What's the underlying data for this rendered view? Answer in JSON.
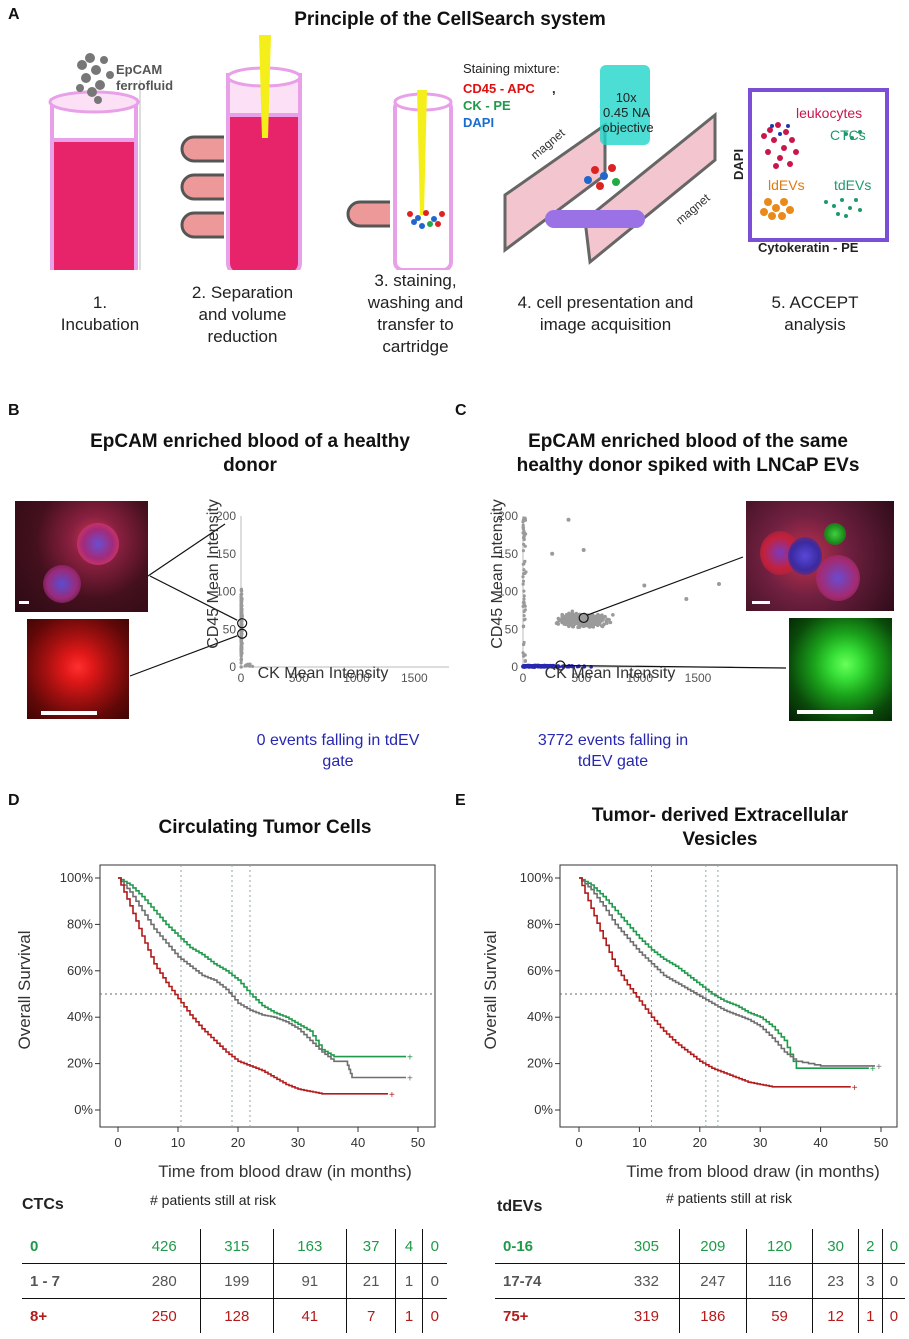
{
  "panelA": {
    "letter": "A",
    "title": "Principle of the CellSearch system",
    "ferrofluid": "EpCAM\nferrofluid",
    "staining_label": "Staining mixture:",
    "stain_cd45": "CD45 - APC",
    "stain_ck": "CK - PE",
    "stain_dapi": "DAPI",
    "stain_comma": ",",
    "objective": "10x\n0.45 NA\nobjective",
    "magnet": "magnet",
    "accept_leukocytes": "leukocytes",
    "accept_ctcs": "CTCs",
    "accept_tdevs": "tdEVs",
    "accept_ldevs": "ldEVs",
    "accept_dapi": "DAPI",
    "accept_ck": "Cytokeratin - PE",
    "steps": [
      "1.\nIncubation",
      "2. Separation\nand volume\nreduction",
      "3. staining,\nwashing and\ntransfer to\ncartridge",
      "4. cell presentation and\nimage acquisition",
      "5. ACCEPT\nanalysis"
    ]
  },
  "panelB": {
    "letter": "B",
    "title": "EpCAM enriched blood of a healthy\ndonor",
    "gate_text": "0 events falling in tdEV\ngate"
  },
  "panelC": {
    "letter": "C",
    "title": "EpCAM enriched blood of the same\nhealthy donor spiked with LNCaP EVs",
    "gate_text": "3772 events falling in\ntdEV gate"
  },
  "panelD": {
    "letter": "D",
    "title": "Circulating Tumor Cells",
    "table_label": "CTCs",
    "table_header": "# patients   still at risk",
    "rows": [
      {
        "label": "0",
        "values": [
          "426",
          "315",
          "163",
          "37",
          "4",
          "0"
        ]
      },
      {
        "label": "1 - 7",
        "values": [
          "280",
          "199",
          "91",
          "21",
          "1",
          "0"
        ]
      },
      {
        "label": "8+",
        "values": [
          "250",
          "128",
          "41",
          "7",
          "1",
          "0"
        ]
      }
    ]
  },
  "panelE": {
    "letter": "E",
    "title": "Tumor- derived Extracellular\nVesicles",
    "table_label": "tdEVs",
    "table_header": "# patients   still at risk",
    "rows": [
      {
        "label": "0-16",
        "values": [
          "305",
          "209",
          "120",
          "30",
          "2",
          "0"
        ]
      },
      {
        "label": "17-74",
        "values": [
          "332",
          "247",
          "116",
          "23",
          "3",
          "0"
        ]
      },
      {
        "label": "75+",
        "values": [
          "319",
          "186",
          "59",
          "12",
          "1",
          "0"
        ]
      }
    ]
  },
  "colors": {
    "green": "#1f9a4a",
    "grey": "#6e6e6e",
    "red": "#b31b1b",
    "blue": "#2727b0",
    "scatter": "#9a9a9a"
  },
  "chart_data": [
    {
      "id": "scatterB",
      "type": "scatter",
      "xlabel": "CK Mean Intensity",
      "ylabel": "CD45 Mean Intensity",
      "xlim": [
        0,
        1800
      ],
      "ylim": [
        0,
        200
      ],
      "xticks": [
        "0",
        "500",
        "1000",
        "1500"
      ],
      "yticks": [
        "0",
        "50",
        "100",
        "150",
        "200"
      ],
      "series": [
        {
          "name": "events",
          "color": "#9a9a9a",
          "description": "events clustered near CK 0-50, CD45 0-200"
        }
      ],
      "highlighted_points": [
        {
          "x": 10,
          "y": 58
        },
        {
          "x": 10,
          "y": 44
        }
      ]
    },
    {
      "id": "scatterC",
      "type": "scatter",
      "xlabel": "CK Mean Intensity",
      "ylabel": "CD45 Mean Intensity",
      "xlim": [
        0,
        1800
      ],
      "ylim": [
        0,
        200
      ],
      "xticks": [
        "0",
        "500",
        "1000",
        "1500"
      ],
      "yticks": [
        "0",
        "50",
        "100",
        "150",
        "200"
      ],
      "series": [
        {
          "name": "events",
          "color": "#9a9a9a",
          "description": "cloud centred at CK 500, CD45 60"
        },
        {
          "name": "tdEV gate",
          "color": "#2727b0",
          "description": "events along CD45 = 0 up to CK 1700"
        }
      ],
      "highlighted_points": [
        {
          "x": 520,
          "y": 65
        },
        {
          "x": 320,
          "y": 2
        }
      ]
    },
    {
      "id": "kmD",
      "type": "line",
      "title": "Circulating Tumor Cells",
      "xlabel": "Time from blood draw (in months)",
      "ylabel": "Overall Survival",
      "xlim": [
        0,
        50
      ],
      "ylim": [
        0,
        100
      ],
      "xticks": [
        "0",
        "10",
        "20",
        "30",
        "40",
        "50"
      ],
      "yticks": [
        "0%",
        "20%",
        "40%",
        "60%",
        "80%",
        "100%"
      ],
      "median_line": 50,
      "median_times": [
        10.5,
        19,
        22
      ],
      "series": [
        {
          "name": "0",
          "color": "#1f9a4a",
          "x": [
            0,
            2,
            4,
            6,
            8,
            10,
            12,
            14,
            16,
            18,
            20,
            22,
            24,
            26,
            28,
            30,
            32,
            34,
            36,
            40,
            44,
            48
          ],
          "y": [
            100,
            97,
            92,
            86,
            80,
            75,
            70,
            67,
            63,
            60,
            56,
            50,
            45,
            42,
            40,
            37,
            34,
            26,
            23,
            23,
            23,
            23
          ]
        },
        {
          "name": "1 - 7",
          "color": "#6e6e6e",
          "x": [
            0,
            2,
            4,
            6,
            8,
            10,
            12,
            14,
            16,
            18,
            20,
            22,
            24,
            26,
            28,
            30,
            32,
            34,
            36,
            38,
            39,
            48
          ],
          "y": [
            100,
            94,
            86,
            78,
            72,
            66,
            62,
            58,
            56,
            52,
            46,
            43,
            41,
            40,
            38,
            35,
            30,
            25,
            21,
            21,
            14,
            14
          ]
        },
        {
          "name": "8+",
          "color": "#b31b1b",
          "x": [
            0,
            2,
            4,
            6,
            8,
            10,
            12,
            14,
            16,
            18,
            20,
            22,
            24,
            26,
            28,
            30,
            32,
            34,
            36,
            40,
            45
          ],
          "y": [
            100,
            88,
            75,
            63,
            55,
            48,
            41,
            35,
            30,
            25,
            21,
            19,
            17,
            14,
            11,
            9,
            8,
            7,
            7,
            7,
            7
          ]
        }
      ]
    },
    {
      "id": "kmE",
      "type": "line",
      "title": "Tumor- derived Extracellular Vesicles",
      "xlabel": "Time from blood draw (in months)",
      "ylabel": "Overall Survival",
      "xlim": [
        0,
        50
      ],
      "ylim": [
        0,
        100
      ],
      "xticks": [
        "0",
        "10",
        "20",
        "30",
        "40",
        "50"
      ],
      "yticks": [
        "0%",
        "20%",
        "40%",
        "60%",
        "80%",
        "100%"
      ],
      "median_line": 50,
      "median_times": [
        12,
        21,
        23
      ],
      "series": [
        {
          "name": "0-16",
          "color": "#1f9a4a",
          "x": [
            0,
            2,
            4,
            6,
            8,
            10,
            12,
            14,
            16,
            18,
            20,
            22,
            24,
            26,
            28,
            30,
            32,
            34,
            36,
            40,
            44,
            48
          ],
          "y": [
            100,
            97,
            92,
            86,
            80,
            74,
            69,
            65,
            62,
            58,
            54,
            50,
            47,
            45,
            42,
            40,
            36,
            30,
            18,
            18,
            18,
            18
          ]
        },
        {
          "name": "17-74",
          "color": "#6e6e6e",
          "x": [
            0,
            2,
            4,
            6,
            8,
            10,
            12,
            14,
            16,
            18,
            20,
            22,
            24,
            26,
            28,
            30,
            32,
            34,
            36,
            40,
            44,
            49
          ],
          "y": [
            100,
            95,
            88,
            80,
            74,
            68,
            63,
            58,
            55,
            52,
            49,
            46,
            43,
            41,
            39,
            36,
            31,
            25,
            21,
            19,
            19,
            19
          ]
        },
        {
          "name": "75+",
          "color": "#b31b1b",
          "x": [
            0,
            2,
            4,
            6,
            8,
            10,
            12,
            14,
            16,
            18,
            20,
            22,
            24,
            26,
            28,
            30,
            32,
            34,
            36,
            40,
            45
          ],
          "y": [
            100,
            87,
            74,
            62,
            54,
            47,
            40,
            34,
            29,
            25,
            21,
            18,
            16,
            14,
            12,
            11,
            10,
            10,
            10,
            10,
            10
          ]
        }
      ]
    }
  ]
}
